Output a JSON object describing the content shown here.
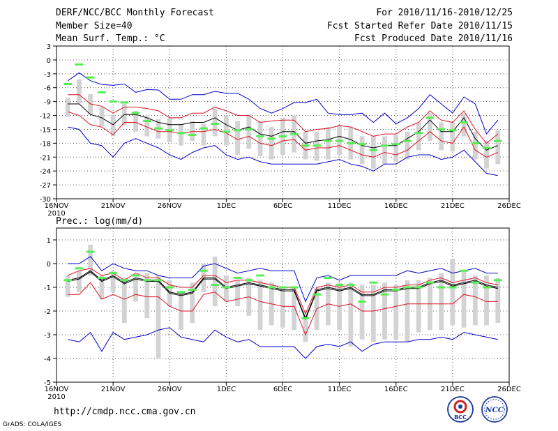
{
  "header": {
    "title": "DERF/NCC/BCC Monthly Forecast",
    "member_size": "Member Size=40",
    "forecast_range": "For 2010/11/16-2010/12/25",
    "refer_date": "Fcst Started Refer Date 2010/11/15",
    "produced_date": "Fcst Produced Date 2010/11/16"
  },
  "footer": {
    "url": "http://cmdp.ncc.cma.gov.cn",
    "grads": "GrADS: COLA/IGES",
    "logo_left": "BCC",
    "logo_right": "NCC"
  },
  "colors": {
    "member_box": "#d3d3d3",
    "ensemble_mean": "#000000",
    "spread_band": "#dd1122",
    "extreme_band": "#0000cc",
    "observed": "#55ee55",
    "grid": "#555555"
  },
  "chart_data": [
    {
      "type": "line",
      "title": "Mean Surf. Temp.: °C",
      "ylim": [
        -30,
        3
      ],
      "yticks": [
        3,
        0,
        -3,
        -6,
        -9,
        -12,
        -15,
        -18,
        -21,
        -24,
        -27,
        -30
      ],
      "xlim": [
        0,
        40
      ],
      "xticks": [
        {
          "day": 0,
          "label": "16NOV",
          "sub": "2010"
        },
        {
          "day": 5,
          "label": "21NOV"
        },
        {
          "day": 10,
          "label": "26NOV"
        },
        {
          "day": 15,
          "label": "1DEC"
        },
        {
          "day": 20,
          "label": "6DEC"
        },
        {
          "day": 25,
          "label": "11DEC"
        },
        {
          "day": 30,
          "label": "16DEC"
        },
        {
          "day": 35,
          "label": "21DEC"
        },
        {
          "day": 40,
          "label": "26DEC"
        }
      ],
      "days": [
        1,
        2,
        3,
        4,
        5,
        6,
        7,
        8,
        9,
        10,
        11,
        12,
        13,
        14,
        15,
        16,
        17,
        18,
        19,
        20,
        21,
        22,
        23,
        24,
        25,
        26,
        27,
        28,
        29,
        30,
        31,
        32,
        33,
        34,
        35,
        36,
        37,
        38,
        39
      ],
      "series": [
        {
          "name": "ensemble max",
          "color_key": "extreme_band",
          "values": [
            -4.5,
            -2.8,
            -4.5,
            -5.3,
            -5.5,
            -5.2,
            -7,
            -6.4,
            -6.5,
            -8.5,
            -8.5,
            -7.5,
            -7.5,
            -6.8,
            -7.2,
            -7.2,
            -8.5,
            -10.5,
            -11.5,
            -10.5,
            -9.2,
            -9.2,
            -8.5,
            -11.5,
            -11.8,
            -11.8,
            -11.5,
            -13.5,
            -11.5,
            -13.8,
            -12.5,
            -10.5,
            -7.5,
            -9.5,
            -11.5,
            -8,
            -9.5,
            -16,
            -13
          ]
        },
        {
          "name": "mean + spread",
          "color_key": "spread_band",
          "values": [
            -7.5,
            -7.5,
            -9.5,
            -10,
            -11.5,
            -10.2,
            -10.2,
            -10.5,
            -11,
            -12.5,
            -12.5,
            -11.5,
            -11.5,
            -10.2,
            -11,
            -12,
            -12,
            -13.5,
            -13.2,
            -13,
            -13,
            -15.5,
            -15,
            -14.8,
            -14.2,
            -14.5,
            -15.5,
            -16.5,
            -16,
            -16,
            -14.5,
            -13.5,
            -11,
            -13,
            -13.5,
            -11,
            -15,
            -18,
            -16
          ]
        },
        {
          "name": "ensemble mean",
          "color_key": "ensemble_mean",
          "values": [
            -9.5,
            -9.5,
            -11.8,
            -12.5,
            -14,
            -11.8,
            -11.8,
            -12.5,
            -13.5,
            -14,
            -14,
            -13.5,
            -13.5,
            -12.5,
            -14,
            -15.2,
            -14.5,
            -16,
            -16.5,
            -15.5,
            -15.5,
            -18,
            -17.5,
            -17.2,
            -16.5,
            -17.2,
            -18.5,
            -19,
            -18.5,
            -18.5,
            -17,
            -15.5,
            -13,
            -15.5,
            -15.5,
            -12.5,
            -17,
            -19.5,
            -18.5
          ]
        },
        {
          "name": "mean - spread",
          "color_key": "spread_band",
          "values": [
            -11.2,
            -12,
            -14,
            -14.5,
            -16.2,
            -13.5,
            -13.5,
            -14.5,
            -15.5,
            -15.5,
            -15.8,
            -15.5,
            -15.5,
            -15,
            -15.8,
            -17.2,
            -16.5,
            -18,
            -18.5,
            -17.5,
            -17.2,
            -19.5,
            -19,
            -19,
            -18.5,
            -19.5,
            -20.5,
            -21,
            -20,
            -20.5,
            -19.5,
            -17.5,
            -15.5,
            -17.5,
            -18,
            -14.5,
            -19.5,
            -21,
            -20
          ]
        },
        {
          "name": "ensemble min",
          "color_key": "extreme_band",
          "values": [
            -14.5,
            -15,
            -18,
            -18.5,
            -21,
            -18,
            -17,
            -18,
            -19,
            -20.5,
            -21.5,
            -20,
            -19,
            -18.5,
            -20.5,
            -21.5,
            -21,
            -22,
            -22.5,
            -22.5,
            -22.5,
            -22.5,
            -22.5,
            -22,
            -21.5,
            -22.5,
            -23,
            -24,
            -22.5,
            -22.5,
            -21,
            -20.5,
            -20.5,
            -21.5,
            -21,
            -19.5,
            -22,
            -24.5,
            -25
          ]
        }
      ],
      "boxes": [
        [
          -8.2,
          -12.3
        ],
        [
          -4.2,
          -9.4
        ],
        [
          -7.4,
          -11.8
        ],
        [
          -10.2,
          -14.3
        ],
        [
          -11.8,
          -16.5
        ],
        [
          -9.5,
          -14.2
        ],
        [
          -11,
          -15.5
        ],
        [
          -12.2,
          -16.5
        ],
        [
          -12.8,
          -17
        ],
        [
          -12.5,
          -17.8
        ],
        [
          -13.8,
          -18.5
        ],
        [
          -13.2,
          -17.5
        ],
        [
          -13.8,
          -18.5
        ],
        [
          -10.5,
          -16.5
        ],
        [
          -12.2,
          -18.5
        ],
        [
          -13.2,
          -20.5
        ],
        [
          -11.8,
          -19.2
        ],
        [
          -13.2,
          -20.8
        ],
        [
          -14.5,
          -21.5
        ],
        [
          -12.5,
          -20.5
        ],
        [
          -12,
          -20
        ],
        [
          -15.5,
          -21.5
        ],
        [
          -15.5,
          -21.8
        ],
        [
          -14.5,
          -21.5
        ],
        [
          -14,
          -20.5
        ],
        [
          -14.5,
          -21.5
        ],
        [
          -16.5,
          -22.5
        ],
        [
          -16.5,
          -23.5
        ],
        [
          -16.5,
          -22.5
        ],
        [
          -16.2,
          -22
        ],
        [
          -15.5,
          -21.5
        ],
        [
          -13.5,
          -19.5
        ],
        [
          -11.5,
          -17.5
        ],
        [
          -13.5,
          -19.5
        ],
        [
          -13.5,
          -19.8
        ],
        [
          -11.5,
          -16.5
        ],
        [
          -15.5,
          -21.5
        ],
        [
          -17.5,
          -23.5
        ],
        [
          -15.2,
          -22.5
        ]
      ],
      "observed": [
        -5.2,
        -1,
        -3.8,
        -7,
        -9,
        -9.2,
        -11.5,
        -13.2,
        -14.8,
        -15.2,
        -15.8,
        -16.2,
        -14.8,
        -13.8,
        -15.5,
        -15.2,
        -15,
        -16.5,
        -17,
        -16.5,
        -16,
        -18.5,
        -18.5,
        -17.5,
        -17.5,
        -18,
        -18.2,
        -19.5,
        -18.5,
        -18.2,
        -17.5,
        -15.8,
        -12.5,
        -15,
        -15.2,
        -13.5,
        -18,
        -19,
        -17.5
      ]
    },
    {
      "type": "line",
      "title": "Prec.: log(mm/d)",
      "ylim": [
        -5,
        1.5
      ],
      "yticks": [
        1,
        0,
        -1,
        -2,
        -3,
        -4,
        -5
      ],
      "xlim": [
        0,
        40
      ],
      "xticks": [
        {
          "day": 0,
          "label": "16NOV",
          "sub": "2010"
        },
        {
          "day": 5,
          "label": "21NOV"
        },
        {
          "day": 10,
          "label": "26NOV"
        },
        {
          "day": 15,
          "label": "1DEC"
        },
        {
          "day": 20,
          "label": "6DEC"
        },
        {
          "day": 25,
          "label": "11DEC"
        },
        {
          "day": 30,
          "label": "16DEC"
        },
        {
          "day": 35,
          "label": "21DEC"
        },
        {
          "day": 40,
          "label": "26DEC"
        }
      ],
      "days": [
        1,
        2,
        3,
        4,
        5,
        6,
        7,
        8,
        9,
        10,
        11,
        12,
        13,
        14,
        15,
        16,
        17,
        18,
        19,
        20,
        21,
        22,
        23,
        24,
        25,
        26,
        27,
        28,
        29,
        30,
        31,
        32,
        33,
        34,
        35,
        36,
        37,
        38,
        39
      ],
      "series": [
        {
          "name": "ensemble max",
          "color_key": "extreme_band",
          "values": [
            0,
            0,
            0.3,
            -0.3,
            0,
            -0.2,
            -0.3,
            -0.3,
            -0.5,
            -0.6,
            -0.6,
            -0.6,
            -0.1,
            0,
            -0.2,
            -0.4,
            -0.3,
            -0.2,
            -0.3,
            -0.3,
            -0.3,
            -1.6,
            -0.6,
            -0.5,
            -0.7,
            -0.5,
            -0.5,
            -0.5,
            -0.5,
            -0.5,
            -0.3,
            -0.4,
            -0.3,
            -0.2,
            -0.4,
            -0.3,
            -0.2,
            -0.4,
            -0.4
          ]
        },
        {
          "name": "mean + spread",
          "color_key": "spread_band",
          "values": [
            -0.5,
            -0.3,
            -0.2,
            -0.5,
            -0.4,
            -0.7,
            -0.4,
            -0.6,
            -0.6,
            -0.9,
            -1,
            -1,
            -0.5,
            -0.5,
            -0.8,
            -0.7,
            -0.7,
            -0.8,
            -0.9,
            -1,
            -1,
            -2.1,
            -1,
            -0.9,
            -1,
            -0.9,
            -1.2,
            -1.2,
            -1,
            -1,
            -0.9,
            -0.9,
            -0.7,
            -0.6,
            -0.8,
            -0.7,
            -0.6,
            -0.8,
            -0.9
          ]
        },
        {
          "name": "ensemble mean",
          "color_key": "ensemble_mean",
          "values": [
            -0.7,
            -0.6,
            -0.3,
            -0.7,
            -0.5,
            -0.8,
            -0.6,
            -0.7,
            -0.7,
            -1.2,
            -1.3,
            -1.2,
            -0.6,
            -0.6,
            -1,
            -0.9,
            -0.8,
            -0.9,
            -1,
            -1.1,
            -1.1,
            -2.3,
            -1.1,
            -1,
            -1.1,
            -1,
            -1.3,
            -1.3,
            -1.1,
            -1.1,
            -1,
            -1,
            -0.8,
            -0.7,
            -0.9,
            -0.8,
            -0.7,
            -0.9,
            -1
          ]
        },
        {
          "name": "mean - spread",
          "color_key": "spread_band",
          "values": [
            -1.3,
            -1.3,
            -0.8,
            -1.5,
            -1.3,
            -1.5,
            -1.3,
            -1.4,
            -1.4,
            -1.8,
            -2,
            -2,
            -1.3,
            -1.2,
            -1.6,
            -1.5,
            -1.4,
            -1.6,
            -1.7,
            -1.8,
            -1.8,
            -3,
            -1.9,
            -1.7,
            -1.8,
            -1.7,
            -2,
            -2,
            -1.9,
            -1.8,
            -1.7,
            -1.7,
            -1.7,
            -1.7,
            -1.7,
            -1.3,
            -1.4,
            -1.6,
            -1.6
          ]
        },
        {
          "name": "ensemble min",
          "color_key": "extreme_band",
          "values": [
            -3.2,
            -3.3,
            -2.9,
            -3.7,
            -2.9,
            -3.2,
            -3.1,
            -3,
            -2.8,
            -2.7,
            -3.1,
            -3.2,
            -3.3,
            -2.8,
            -3.1,
            -3.3,
            -3.2,
            -3.5,
            -3.5,
            -3.5,
            -3.5,
            -4,
            -3.5,
            -3.4,
            -3.5,
            -3.3,
            -3.7,
            -3.4,
            -3.3,
            -3.3,
            -3.3,
            -3.2,
            -3.2,
            -3.1,
            -3.2,
            -2.9,
            -3,
            -3.1,
            -3.2
          ]
        },
        {
          "name": "second mean",
          "color_key": "ensemble_mean",
          "values": [
            -0.75,
            -0.65,
            -0.35,
            -0.75,
            -0.55,
            -0.85,
            -0.65,
            -0.75,
            -0.75,
            -1.25,
            -1.35,
            -1.25,
            -0.65,
            -0.65,
            -1.05,
            -0.95,
            -0.85,
            -0.95,
            -1.05,
            -1.15,
            -1.15,
            -2.35,
            -1.15,
            -1.05,
            -1.15,
            -1.05,
            -1.35,
            -1.35,
            -1.15,
            -1.15,
            -1.05,
            -1.05,
            -0.85,
            -0.75,
            -0.95,
            -0.85,
            -0.75,
            -0.95,
            -1.05
          ]
        }
      ],
      "boxes": [
        [
          -0.5,
          -1.4
        ],
        [
          -0.3,
          -1.2
        ],
        [
          0.8,
          -0.5
        ],
        [
          -0.5,
          -1.5
        ],
        [
          -0.3,
          -1.2
        ],
        [
          -0.6,
          -2.5
        ],
        [
          -0.6,
          -1.6
        ],
        [
          -0.4,
          -2.3
        ],
        [
          -0.5,
          -4
        ],
        [
          -0.7,
          -1.8
        ],
        [
          -1.2,
          -2.8
        ],
        [
          -0.8,
          -2.5
        ],
        [
          0,
          -1.2
        ],
        [
          0.3,
          -1.8
        ],
        [
          -0.5,
          -1.6
        ],
        [
          -0.7,
          -1.8
        ],
        [
          -0.6,
          -2.2
        ],
        [
          -0.7,
          -2.8
        ],
        [
          -0.8,
          -2.6
        ],
        [
          -1,
          -2.7
        ],
        [
          -1,
          -2.8
        ],
        [
          -2,
          -3.3
        ],
        [
          -1,
          -2.8
        ],
        [
          -0.8,
          -2.6
        ],
        [
          -0.8,
          -2.8
        ],
        [
          -0.8,
          -3.5
        ],
        [
          -0.9,
          -3.2
        ],
        [
          -0.9,
          -3.3
        ],
        [
          -0.8,
          -3.2
        ],
        [
          -0.9,
          -3.2
        ],
        [
          -0.7,
          -3.3
        ],
        [
          -0.7,
          -2.9
        ],
        [
          -0.6,
          -2.8
        ],
        [
          -0.4,
          -2.8
        ],
        [
          0.2,
          -2.6
        ],
        [
          -0.3,
          -2.7
        ],
        [
          -0.5,
          -2.6
        ],
        [
          -0.5,
          -2.6
        ],
        [
          -0.6,
          -2.5
        ]
      ],
      "observed": [
        -0.7,
        -0.2,
        0.5,
        -0.6,
        -0.4,
        -0.7,
        -0.5,
        -0.7,
        -0.7,
        -1,
        -1.2,
        -1.1,
        -0.3,
        -0.9,
        -1,
        -0.6,
        -0.7,
        -0.5,
        -1,
        -1,
        -1,
        -2.3,
        -1.3,
        -0.6,
        -0.9,
        -0.9,
        -1.6,
        -0.8,
        -1.3,
        -1.1,
        -1,
        -1,
        -0.8,
        -1,
        -1,
        -0.3,
        -0.8,
        -1,
        -0.7
      ]
    }
  ]
}
